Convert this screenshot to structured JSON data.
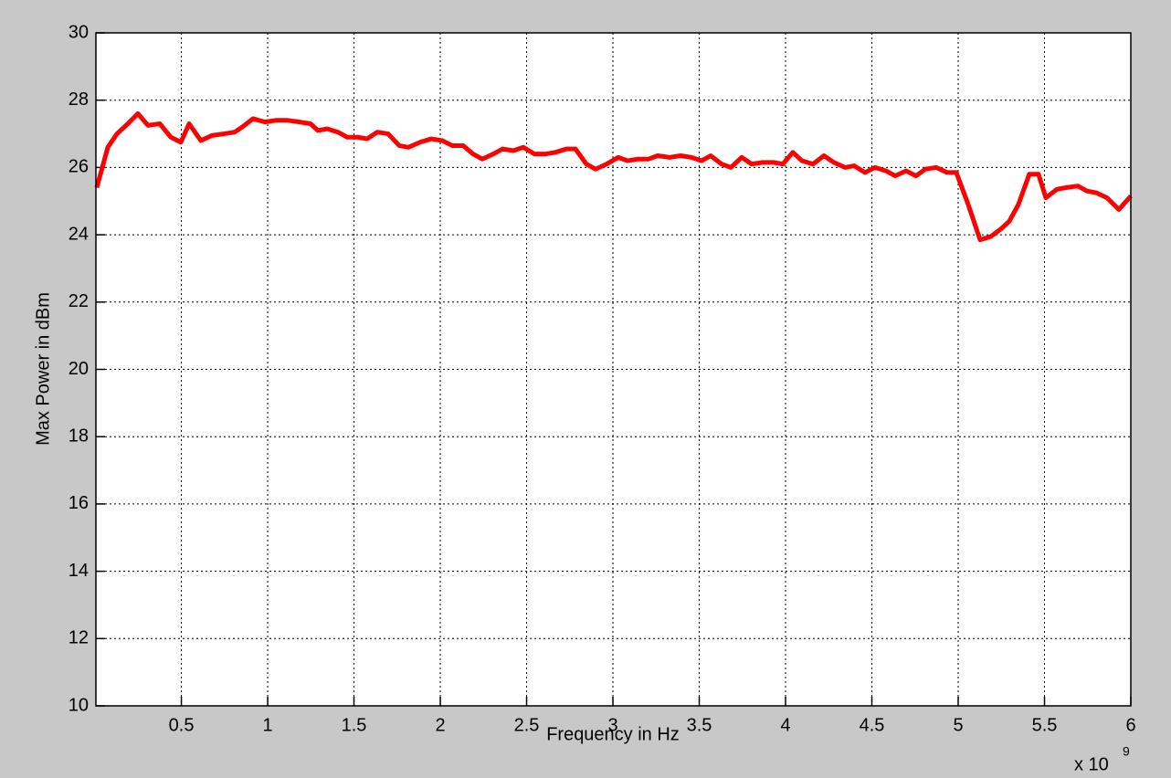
{
  "chart_data": {
    "type": "line",
    "x_label": "Frequency in Hz",
    "y_label": "Max Power in dBm",
    "x_multiplier": "x 10",
    "x_multiplier_exponent": "9",
    "xlim": [
      0.005,
      6
    ],
    "ylim": [
      10,
      30
    ],
    "xticks": [
      0.5,
      1,
      1.5,
      2,
      2.5,
      3,
      3.5,
      4,
      4.5,
      5,
      5.5,
      6
    ],
    "yticks": [
      10,
      12,
      14,
      16,
      18,
      20,
      22,
      24,
      26,
      28,
      30
    ],
    "grid": true,
    "series": [
      {
        "color": "#ff0000",
        "x": [
          0.01,
          0.074,
          0.127,
          0.19,
          0.248,
          0.307,
          0.375,
          0.439,
          0.497,
          0.545,
          0.613,
          0.677,
          0.746,
          0.809,
          0.852,
          0.915,
          0.984,
          1.047,
          1.116,
          1.185,
          1.248,
          1.291,
          1.344,
          1.407,
          1.46,
          1.524,
          1.576,
          1.635,
          1.698,
          1.762,
          1.815,
          1.883,
          1.947,
          2.01,
          2.069,
          2.132,
          2.19,
          2.243,
          2.307,
          2.36,
          2.423,
          2.481,
          2.545,
          2.608,
          2.667,
          2.73,
          2.783,
          2.846,
          2.899,
          2.963,
          3.031,
          3.084,
          3.143,
          3.206,
          3.259,
          3.328,
          3.392,
          3.455,
          3.513,
          3.566,
          3.63,
          3.683,
          3.746,
          3.804,
          3.868,
          3.931,
          3.984,
          4.042,
          4.095,
          4.159,
          4.222,
          4.28,
          4.344,
          4.397,
          4.46,
          4.518,
          4.582,
          4.635,
          4.698,
          4.756,
          4.809,
          4.873,
          4.936,
          4.989,
          5.058,
          5.127,
          5.19,
          5.254,
          5.296,
          5.349,
          5.412,
          5.465,
          5.508,
          5.571,
          5.624,
          5.693,
          5.746,
          5.799,
          5.862,
          5.931,
          6.0
        ],
        "values": [
          25.4,
          26.6,
          27.0,
          27.3,
          27.6,
          27.25,
          27.3,
          26.9,
          26.75,
          27.3,
          26.8,
          26.95,
          27.0,
          27.05,
          27.2,
          27.45,
          27.35,
          27.4,
          27.4,
          27.35,
          27.3,
          27.1,
          27.15,
          27.05,
          26.9,
          26.9,
          26.85,
          27.05,
          27.0,
          26.65,
          26.6,
          26.75,
          26.85,
          26.8,
          26.65,
          26.65,
          26.4,
          26.25,
          26.4,
          26.55,
          26.5,
          26.6,
          26.4,
          26.4,
          26.45,
          26.55,
          26.55,
          26.1,
          25.95,
          26.1,
          26.3,
          26.2,
          26.25,
          26.25,
          26.35,
          26.3,
          26.35,
          26.3,
          26.2,
          26.35,
          26.1,
          26.0,
          26.3,
          26.1,
          26.15,
          26.15,
          26.1,
          26.45,
          26.2,
          26.1,
          26.35,
          26.15,
          26.0,
          26.05,
          25.85,
          26.0,
          25.9,
          25.75,
          25.9,
          25.75,
          25.95,
          26.0,
          25.85,
          25.85,
          24.9,
          23.85,
          23.95,
          24.2,
          24.4,
          24.9,
          25.8,
          25.8,
          25.1,
          25.35,
          25.4,
          25.45,
          25.3,
          25.25,
          25.1,
          24.75,
          25.15
        ]
      }
    ]
  }
}
